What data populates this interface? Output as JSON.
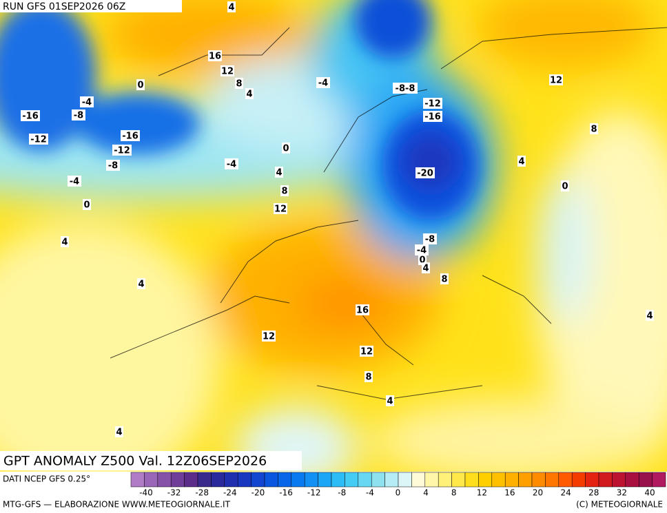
{
  "header": {
    "run": "RUN GFS 01SEP2026 06Z"
  },
  "map": {
    "title": "GPT ANOMALY Z500 Val. 12Z06SEP2026",
    "contour_labels": [
      "4",
      "16",
      "12",
      "8",
      "4",
      "0",
      "-4",
      "-8",
      "-16",
      "-12",
      "-16",
      "-12",
      "-8",
      "-4",
      "0",
      "-4",
      "0",
      "4",
      "8",
      "12",
      "-4",
      "-8-8",
      "-12",
      "-16",
      "-20",
      "12",
      "8",
      "4",
      "0",
      "-8",
      "-4",
      "0",
      "4",
      "8",
      "4",
      "4",
      "16",
      "12",
      "12",
      "8",
      "4",
      "4",
      "4"
    ]
  },
  "legend": {
    "source": "DATI NCEP GFS 0.25°",
    "colors": [
      "#b07cc6",
      "#9a66b8",
      "#8552a8",
      "#703e98",
      "#5c2e8a",
      "#3a2a8c",
      "#2a2a9c",
      "#1f2fae",
      "#1838c0",
      "#1246d0",
      "#0a56de",
      "#0866e8",
      "#0a7af0",
      "#1290f4",
      "#1ea6f6",
      "#2cbcf6",
      "#44ccf4",
      "#66d8f2",
      "#8ee2f0",
      "#b6ecf4",
      "#dcf6f8",
      "#fffbd8",
      "#fff6a8",
      "#fff07a",
      "#ffe84a",
      "#ffde1e",
      "#ffd000",
      "#ffc000",
      "#ffb000",
      "#ffa000",
      "#ff8c00",
      "#ff7600",
      "#ff5a00",
      "#f43c00",
      "#e42410",
      "#d01a20",
      "#bc1430",
      "#a81040",
      "#98104c",
      "#b01860"
    ],
    "ticks": [
      -40,
      -32,
      -28,
      -24,
      -20,
      -16,
      -12,
      -8,
      -4,
      0,
      4,
      8,
      12,
      16,
      20,
      24,
      28,
      32,
      40
    ]
  },
  "footer": {
    "left": "MTG-GFS — ELABORAZIONE WWW.METEOGIORNALE.IT",
    "right": "(C) METEOGIORNALE"
  }
}
